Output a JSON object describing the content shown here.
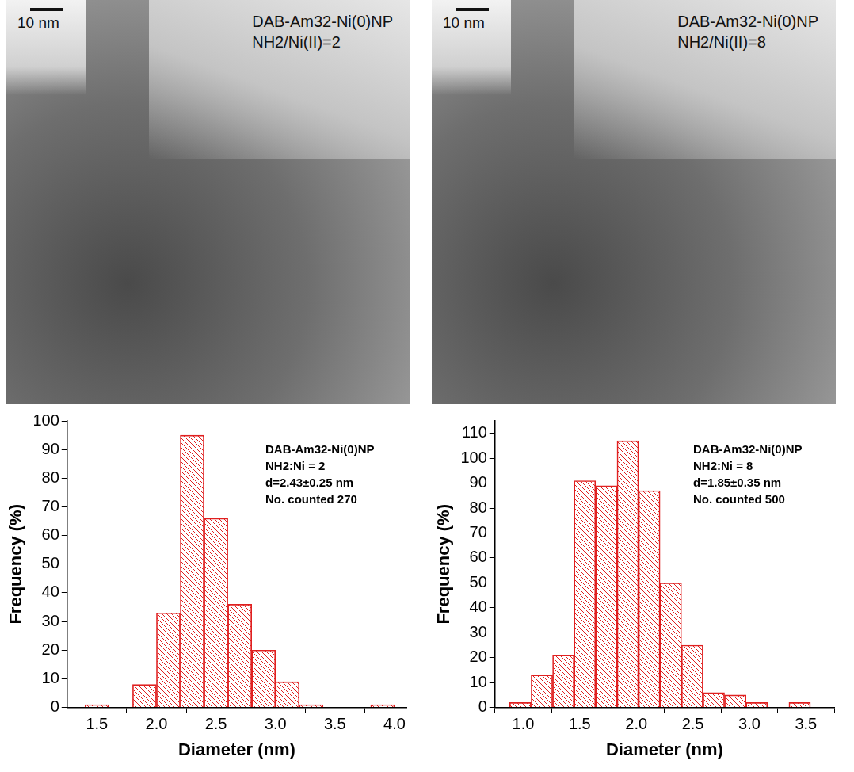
{
  "micrographs": [
    {
      "scale_bar": "10 nm",
      "title": "DAB-Am32-Ni(0)NP",
      "subtitle": "NH2/Ni(II)=2"
    },
    {
      "scale_bar": "10 nm",
      "title": "DAB-Am32-Ni(0)NP",
      "subtitle": "NH2/Ni(II)=8"
    }
  ],
  "chart_data": [
    {
      "type": "histogram",
      "bins": [
        1.4,
        1.6,
        1.8,
        2.0,
        2.2,
        2.4,
        2.6,
        2.8,
        3.0,
        3.2,
        3.4,
        3.6,
        3.8,
        4.0
      ],
      "values": [
        1,
        0,
        8,
        33,
        95,
        66,
        36,
        20,
        9,
        1,
        0,
        0,
        1
      ],
      "color": "#e02020",
      "x_label": "Diameter (nm)",
      "y_label": "Frequency (%)",
      "xlim": [
        1.25,
        4.1
      ],
      "xticks": [
        {
          "value": 1.5,
          "label": "1.5"
        },
        {
          "value": 2,
          "label": "2.0"
        },
        {
          "value": 2.5,
          "label": "2.5"
        },
        {
          "value": 3,
          "label": "3.0"
        },
        {
          "value": 3.5,
          "label": "3.5"
        },
        {
          "value": 4,
          "label": "4.0"
        }
      ],
      "ylim": [
        0,
        100
      ],
      "yticks": [
        0,
        10,
        20,
        30,
        40,
        50,
        60,
        70,
        80,
        90,
        100
      ],
      "grid": false,
      "annotations": [
        "DAB-Am32-Ni(0)NP",
        "NH2:Ni = 2",
        "d=2.43±0.25 nm",
        "No. counted 270"
      ]
    },
    {
      "type": "histogram",
      "bins": [
        0.88,
        1.07,
        1.26,
        1.45,
        1.64,
        1.83,
        2.02,
        2.21,
        2.4,
        2.59,
        2.78,
        2.97,
        3.16,
        3.35,
        3.54
      ],
      "values": [
        2,
        13,
        21,
        91,
        89,
        107,
        87,
        50,
        25,
        6,
        5,
        2,
        0,
        2
      ],
      "color": "#e02020",
      "x_label": "Diameter (nm)",
      "y_label": "Frequency (%)",
      "xlim": [
        0.75,
        3.75
      ],
      "xticks": [
        {
          "value": 1,
          "label": "1.0"
        },
        {
          "value": 1.5,
          "label": "1.5"
        },
        {
          "value": 2,
          "label": "2.0"
        },
        {
          "value": 2.5,
          "label": "2.5"
        },
        {
          "value": 3,
          "label": "3.0"
        },
        {
          "value": 3.5,
          "label": "3.5"
        }
      ],
      "ylim": [
        0,
        115
      ],
      "yticks": [
        0,
        10,
        20,
        30,
        40,
        50,
        60,
        70,
        80,
        90,
        100,
        110
      ],
      "grid": false,
      "annotations": [
        "DAB-Am32-Ni(0)NP",
        "NH2:Ni = 8",
        "d=1.85±0.35 nm",
        "No. counted 500"
      ]
    }
  ]
}
